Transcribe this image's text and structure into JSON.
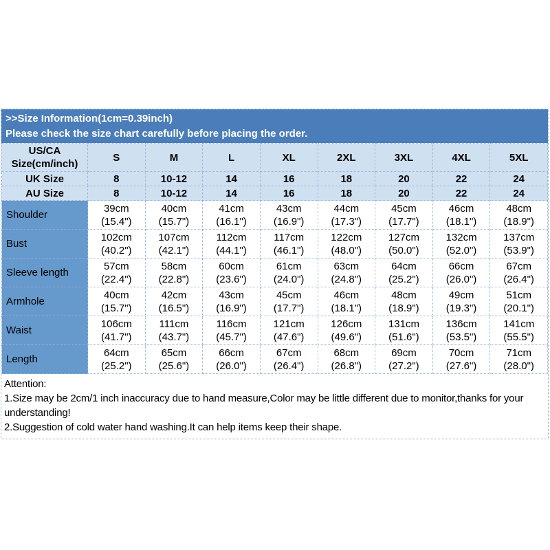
{
  "banner": {
    "line1": ">>Size Information(1cm=0.39inch)",
    "line2": "Please check the size chart carefully before placing the order."
  },
  "table": {
    "corner": [
      "US/CA",
      "Size(cm/inch)"
    ],
    "size_labels": [
      "S",
      "M",
      "L",
      "XL",
      "2XL",
      "3XL",
      "4XL",
      "5XL"
    ],
    "uk": {
      "label": "UK Size",
      "values": [
        "8",
        "10-12",
        "14",
        "16",
        "18",
        "20",
        "22",
        "24"
      ]
    },
    "au": {
      "label": "AU Size",
      "values": [
        "8",
        "10-12",
        "14",
        "16",
        "18",
        "20",
        "22",
        "24"
      ]
    },
    "rows": [
      {
        "label": "Shoulder",
        "cm": [
          "39cm",
          "40cm",
          "41cm",
          "43cm",
          "44cm",
          "45cm",
          "46cm",
          "48cm"
        ],
        "in": [
          "(15.4\")",
          "(15.7\")",
          "(16.1\")",
          "(16.9\")",
          "(17.3\")",
          "(17.7\")",
          "(18.1\")",
          "(18.9\")"
        ]
      },
      {
        "label": "Bust",
        "cm": [
          "102cm",
          "107cm",
          "112cm",
          "117cm",
          "122cm",
          "127cm",
          "132cm",
          "137cm"
        ],
        "in": [
          "(40.2\")",
          "(42.1\")",
          "(44.1\")",
          "(46.1\")",
          "(48.0\")",
          "(50.0\")",
          "(52.0\")",
          "(53.9\")"
        ]
      },
      {
        "label": "Sleeve length",
        "cm": [
          "57cm",
          "58cm",
          "60cm",
          "61cm",
          "63cm",
          "64cm",
          "66cm",
          "67cm"
        ],
        "in": [
          "(22.4\")",
          "(22.8\")",
          "(23.6\")",
          "(24.0\")",
          "(24.8\")",
          "(25.2\")",
          "(26.0\")",
          "(26.4\")"
        ]
      },
      {
        "label": "Armhole",
        "cm": [
          "40cm",
          "42cm",
          "43cm",
          "45cm",
          "46cm",
          "48cm",
          "49cm",
          "51cm"
        ],
        "in": [
          "(15.7\")",
          "(16.5\")",
          "(16.9\")",
          "(17.7\")",
          "(18.1\")",
          "(18.9\")",
          "(19.3\")",
          "(20.1\")"
        ]
      },
      {
        "label": "Waist",
        "cm": [
          "106cm",
          "111cm",
          "116cm",
          "121cm",
          "126cm",
          "131cm",
          "136cm",
          "141cm"
        ],
        "in": [
          "(41.7\")",
          "(43.7\")",
          "(45.7\")",
          "(47.6\")",
          "(49.6\")",
          "(51.6\")",
          "(53.5\")",
          "(55.5\")"
        ]
      },
      {
        "label": "Length",
        "cm": [
          "64cm",
          "65cm",
          "66cm",
          "67cm",
          "68cm",
          "69cm",
          "70cm",
          "71cm"
        ],
        "in": [
          "(25.2\")",
          "(25.6\")",
          "(26.0\")",
          "(26.4\")",
          "(26.8\")",
          "(27.2\")",
          "(27.6\")",
          "(28.0\")"
        ]
      }
    ]
  },
  "attention": {
    "title": "Attention:",
    "line1": "1.Size may be 2cm/1 inch inaccuracy due to hand measure,Color may be little different due to monitor,thanks for your understanding!",
    "line2": "2.Suggestion of cold water hand washing.It can help items keep their shape."
  },
  "colors": {
    "banner_bg": "#4a7db9",
    "banner_text": "#ffffff",
    "header_bg": "#cfe0f1",
    "label_column_bg": "#6699cc",
    "cell_border": "#95b3d7",
    "body_text": "#000000"
  }
}
